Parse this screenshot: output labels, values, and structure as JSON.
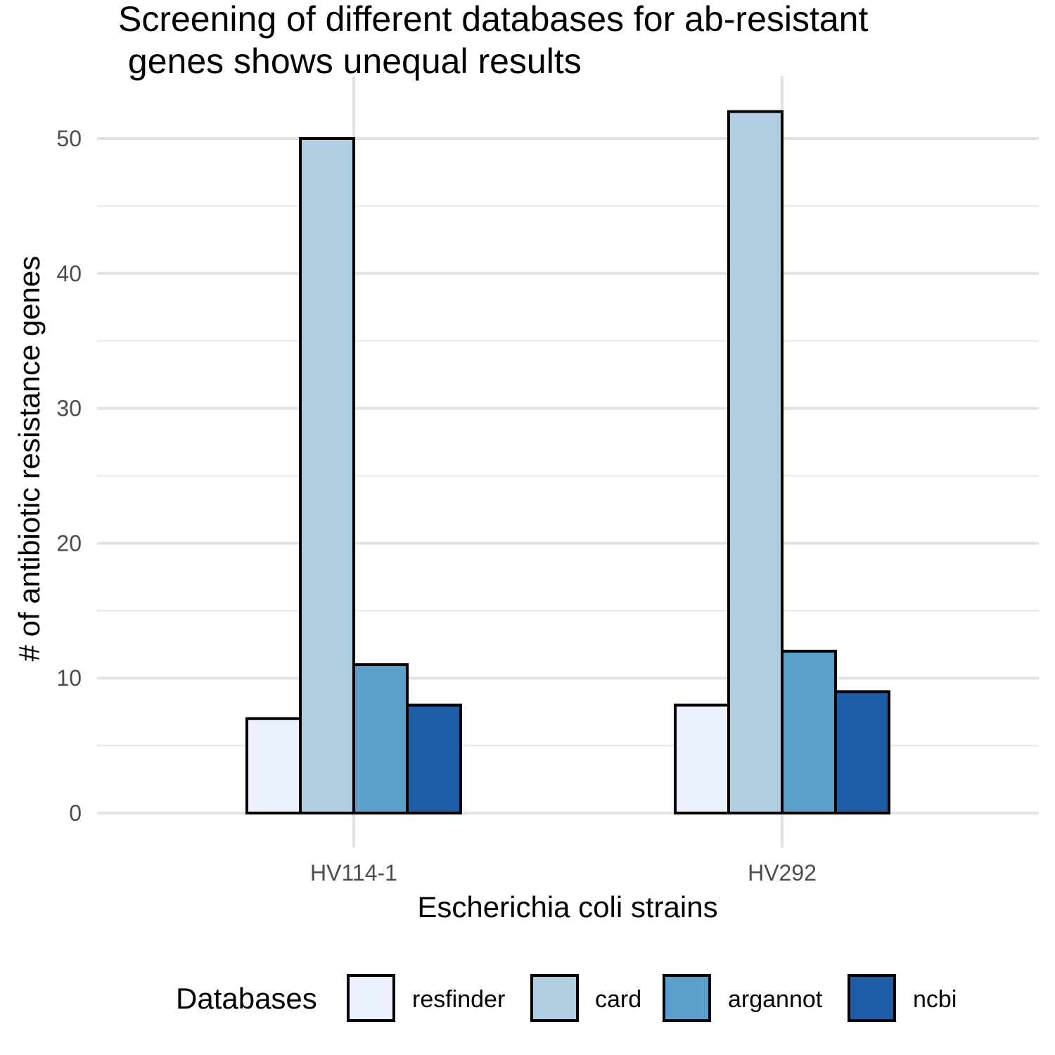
{
  "chart_data": {
    "type": "bar",
    "title_lines": [
      "Screening of different databases for ab-resistant",
      " genes shows unequal results"
    ],
    "xlabel": "Escherichia coli strains",
    "ylabel": "# of antibiotic resistance genes",
    "categories": [
      "HV114-1",
      "HV292"
    ],
    "series": [
      {
        "name": "resfinder",
        "color": "#EAF0FC",
        "values": [
          7,
          8
        ]
      },
      {
        "name": "card",
        "color": "#B0CDE1",
        "values": [
          50,
          52
        ]
      },
      {
        "name": "argannot",
        "color": "#5C9FCC",
        "values": [
          11,
          12
        ]
      },
      {
        "name": "ncbi",
        "color": "#1D5DA7",
        "values": [
          8,
          9
        ]
      }
    ],
    "ylim": [
      0,
      52
    ],
    "yticks": [
      0,
      10,
      20,
      30,
      40,
      50
    ],
    "grid": true,
    "legend_title": "Databases",
    "legend_position": "bottom"
  }
}
